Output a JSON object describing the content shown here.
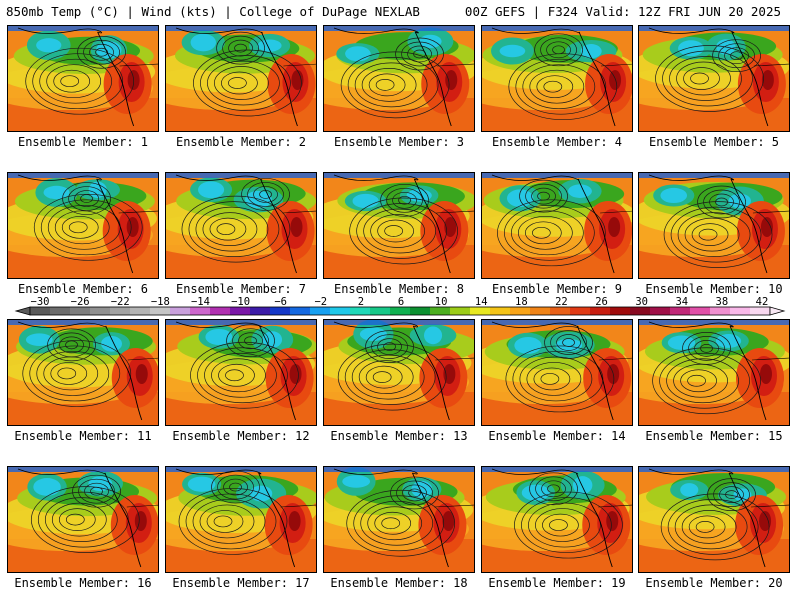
{
  "header": {
    "left": "850mb Temp (°C) | Wind (kts) | College of DuPage NEXLAB",
    "right": "00Z GEFS | F324 Valid: 12Z FRI JUN 20 2025"
  },
  "members": [
    {
      "label": "Ensemble Member: 1"
    },
    {
      "label": "Ensemble Member: 2"
    },
    {
      "label": "Ensemble Member: 3"
    },
    {
      "label": "Ensemble Member: 4"
    },
    {
      "label": "Ensemble Member: 5"
    },
    {
      "label": "Ensemble Member: 6"
    },
    {
      "label": "Ensemble Member: 7"
    },
    {
      "label": "Ensemble Member: 8"
    },
    {
      "label": "Ensemble Member: 9"
    },
    {
      "label": "Ensemble Member: 10"
    },
    {
      "label": "Ensemble Member: 11"
    },
    {
      "label": "Ensemble Member: 12"
    },
    {
      "label": "Ensemble Member: 13"
    },
    {
      "label": "Ensemble Member: 14"
    },
    {
      "label": "Ensemble Member: 15"
    },
    {
      "label": "Ensemble Member: 16"
    },
    {
      "label": "Ensemble Member: 17"
    },
    {
      "label": "Ensemble Member: 18"
    },
    {
      "label": "Ensemble Member: 19"
    },
    {
      "label": "Ensemble Member: 20"
    }
  ],
  "colorbar": {
    "ticks": [
      "−30",
      "−26",
      "−22",
      "−18",
      "−14",
      "−10",
      "−6",
      "−2",
      "2",
      "6",
      "10",
      "14",
      "18",
      "22",
      "26",
      "30",
      "34",
      "38",
      "42"
    ],
    "colors": [
      "#5a5a5a",
      "#6c6c6c",
      "#7e7e7e",
      "#909090",
      "#a2a2a2",
      "#b4b4b4",
      "#c6c6c6",
      "#c9a0dc",
      "#cc66cc",
      "#b030b0",
      "#7a18a8",
      "#3c1ca8",
      "#1438c8",
      "#1468e0",
      "#18a0f0",
      "#20c8e8",
      "#20d8b8",
      "#18c888",
      "#10b050",
      "#0c9030",
      "#4caf20",
      "#9ccc18",
      "#e8e820",
      "#f4c418",
      "#f8a418",
      "#f08418",
      "#e86018",
      "#e03a14",
      "#c81e10",
      "#a00c0c",
      "#880a20",
      "#a01048",
      "#c02878",
      "#e050a8",
      "#f090d0",
      "#f8b8e8",
      "#f8d8f0"
    ]
  },
  "map_colors": {
    "warm_dark": "#e84a10",
    "warm": "#f2861a",
    "warm_light": "#f8aa22",
    "yellow": "#ecd628",
    "lime": "#a8cc1c",
    "green": "#3aa61e",
    "teal": "#22b490",
    "cyan": "#26c8e4",
    "blue": "#1c62d8",
    "red": "#d21e12",
    "darkred": "#960a0a"
  }
}
